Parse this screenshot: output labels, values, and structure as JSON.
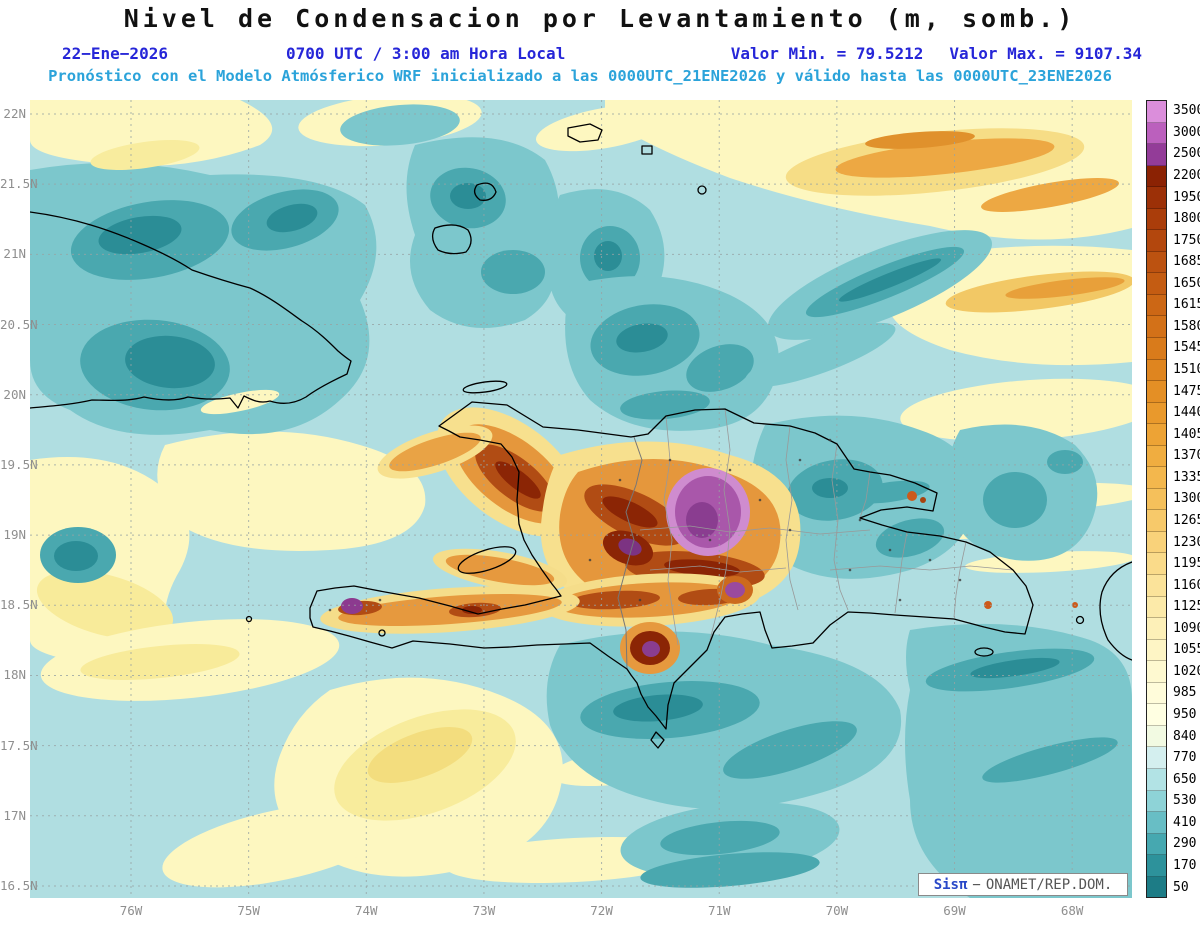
{
  "title": "Nivel de Condensacion por Levantamiento (m, somb.)",
  "subtitle": {
    "date": "22−Ene−2026",
    "time": "0700 UTC / 3:00 am Hora Local",
    "min": "Valor Min. = 79.5212",
    "max": "Valor Max. = 9107.34",
    "forecast": "Pronóstico con el Modelo Atmósferico WRF inicializado a las 0000UTC_21ENE2026 y válido hasta las  0000UTC_23ENE2026"
  },
  "colors": {
    "meta_blue": "#2626d8",
    "meta_cyan": "#2ba3da",
    "watermark_brand": "#2a49c8"
  },
  "axes": {
    "lat_ticks": [
      "22N",
      "21.5N",
      "21N",
      "20.5N",
      "20N",
      "19.5N",
      "19N",
      "18.5N",
      "18N",
      "17.5N",
      "17N",
      "16.5N"
    ],
    "lon_ticks": [
      "76W",
      "75W",
      "74W",
      "73W",
      "72W",
      "71W",
      "70W",
      "69W",
      "68W"
    ]
  },
  "legend": {
    "units": "m",
    "items": [
      {
        "value": "3500",
        "color": "#db8edb"
      },
      {
        "value": "3000",
        "color": "#bb60bd"
      },
      {
        "value": "2500",
        "color": "#933c98"
      },
      {
        "value": "2200",
        "color": "#8b2203"
      },
      {
        "value": "1950",
        "color": "#9c3007"
      },
      {
        "value": "1800",
        "color": "#aa3d0a"
      },
      {
        "value": "1750",
        "color": "#b3470d"
      },
      {
        "value": "1685",
        "color": "#bc5210"
      },
      {
        "value": "1650",
        "color": "#c45c12"
      },
      {
        "value": "1615",
        "color": "#cc6715"
      },
      {
        "value": "1580",
        "color": "#d37118"
      },
      {
        "value": "1545",
        "color": "#d97b1b"
      },
      {
        "value": "1510",
        "color": "#df851f"
      },
      {
        "value": "1475",
        "color": "#e48f25"
      },
      {
        "value": "1440",
        "color": "#e9992c"
      },
      {
        "value": "1405",
        "color": "#eda335"
      },
      {
        "value": "1370",
        "color": "#f0ad40"
      },
      {
        "value": "1335",
        "color": "#f3b74d"
      },
      {
        "value": "1300",
        "color": "#f5c05b"
      },
      {
        "value": "1265",
        "color": "#f7c96a"
      },
      {
        "value": "1230",
        "color": "#f9d27a"
      },
      {
        "value": "1195",
        "color": "#fadb8a"
      },
      {
        "value": "1160",
        "color": "#fbe39a"
      },
      {
        "value": "1125",
        "color": "#fceaa9"
      },
      {
        "value": "1090",
        "color": "#fdf0b8"
      },
      {
        "value": "1055",
        "color": "#fef5c5"
      },
      {
        "value": "1020",
        "color": "#fef9d0"
      },
      {
        "value": "985",
        "color": "#fffcda"
      },
      {
        "value": "950",
        "color": "#ffffe2"
      },
      {
        "value": "840",
        "color": "#f2fae2"
      },
      {
        "value": "770",
        "color": "#d4efef"
      },
      {
        "value": "650",
        "color": "#b2e3e5"
      },
      {
        "value": "530",
        "color": "#8ed3d7"
      },
      {
        "value": "410",
        "color": "#68bec5"
      },
      {
        "value": "290",
        "color": "#46a8b0"
      },
      {
        "value": "170",
        "color": "#2d929b"
      },
      {
        "value": "50",
        "color": "#1d7c86"
      }
    ]
  },
  "watermark": {
    "brand": "Sisπ",
    "dash": "−",
    "org": "ONAMET/REP.DOM."
  }
}
